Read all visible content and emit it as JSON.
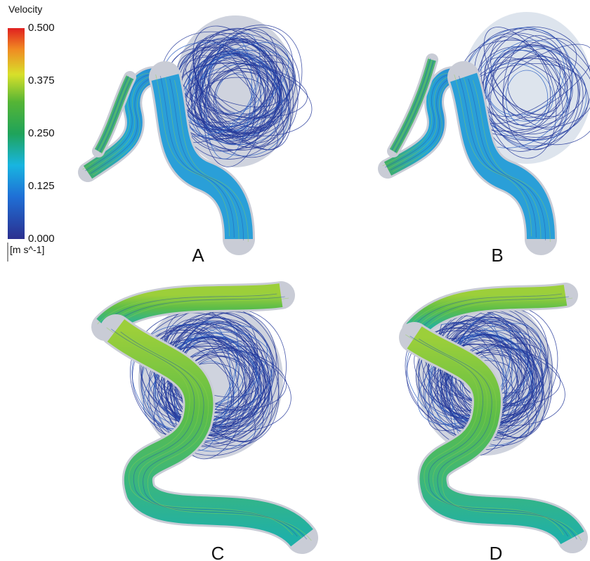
{
  "colorbar": {
    "title": "Velocity",
    "ticks": [
      "0.500",
      "0.375",
      "0.250",
      "0.125",
      "0.000"
    ],
    "unit": "[m s^-1]"
  },
  "panels": [
    {
      "label": "A"
    },
    {
      "label": "B"
    },
    {
      "label": "C"
    },
    {
      "label": "D"
    }
  ]
}
